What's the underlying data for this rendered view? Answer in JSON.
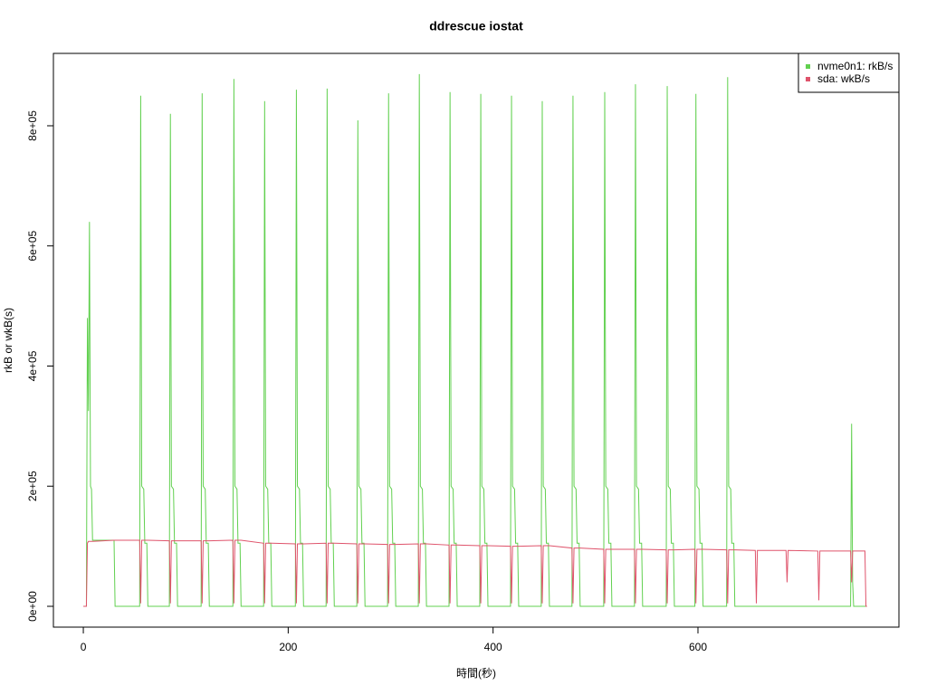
{
  "chart_data": {
    "type": "line",
    "title": "ddrescue iostat",
    "xlabel": "時間(秒)",
    "ylabel": "rkB or wkB(s)",
    "x": [
      0,
      3,
      4,
      5,
      6,
      7,
      8,
      9,
      30,
      31,
      55,
      56,
      57,
      59,
      60,
      62,
      63,
      84,
      85,
      86,
      88,
      89,
      91,
      92,
      115,
      116,
      117,
      119,
      120,
      122,
      123,
      146,
      147,
      148,
      150,
      151,
      153,
      154,
      176,
      177,
      178,
      180,
      181,
      183,
      184,
      207,
      208,
      209,
      211,
      212,
      214,
      215,
      237,
      238,
      239,
      241,
      242,
      244,
      245,
      267,
      268,
      269,
      271,
      272,
      274,
      275,
      297,
      298,
      299,
      301,
      302,
      304,
      305,
      327,
      328,
      329,
      331,
      332,
      334,
      335,
      357,
      358,
      359,
      361,
      362,
      364,
      365,
      387,
      388,
      389,
      391,
      392,
      394,
      395,
      417,
      418,
      419,
      421,
      422,
      424,
      425,
      447,
      448,
      449,
      451,
      452,
      454,
      455,
      477,
      478,
      479,
      481,
      482,
      484,
      485,
      508,
      509,
      510,
      512,
      513,
      515,
      516,
      538,
      539,
      540,
      542,
      543,
      545,
      546,
      569,
      570,
      571,
      573,
      574,
      576,
      577,
      597,
      598,
      599,
      601,
      602,
      604,
      605,
      628,
      629,
      630,
      632,
      633,
      635,
      636,
      656,
      657,
      658,
      686,
      687,
      688,
      717,
      718,
      719,
      749,
      750,
      751,
      752,
      763,
      764,
      765
    ],
    "series": [
      {
        "name": "nvme0n1: rkB/s",
        "color": "#61d04f",
        "values": [
          0,
          0,
          480000,
          325000,
          640000,
          200000,
          195000,
          110000,
          110000,
          0,
          0,
          850000,
          200000,
          195000,
          105000,
          105000,
          0,
          0,
          820000,
          200000,
          195000,
          105000,
          105000,
          0,
          0,
          854000,
          200000,
          195000,
          105000,
          105000,
          0,
          0,
          878000,
          200000,
          195000,
          105000,
          105000,
          0,
          0,
          841000,
          200000,
          195000,
          105000,
          105000,
          0,
          0,
          860000,
          200000,
          195000,
          105000,
          105000,
          0,
          0,
          862000,
          200000,
          195000,
          105000,
          105000,
          0,
          0,
          809000,
          200000,
          195000,
          105000,
          105000,
          0,
          0,
          854000,
          200000,
          195000,
          105000,
          105000,
          0,
          0,
          886000,
          200000,
          195000,
          105000,
          105000,
          0,
          0,
          856000,
          200000,
          195000,
          105000,
          105000,
          0,
          0,
          853000,
          200000,
          195000,
          105000,
          105000,
          0,
          0,
          850000,
          200000,
          195000,
          105000,
          105000,
          0,
          0,
          841000,
          200000,
          195000,
          105000,
          105000,
          0,
          0,
          850000,
          200000,
          195000,
          105000,
          105000,
          0,
          0,
          856000,
          200000,
          195000,
          105000,
          105000,
          0,
          0,
          869000,
          200000,
          195000,
          105000,
          105000,
          0,
          0,
          866000,
          200000,
          195000,
          105000,
          105000,
          0,
          0,
          853000,
          200000,
          195000,
          105000,
          105000,
          0,
          0,
          881000,
          200000,
          195000,
          105000,
          105000,
          0,
          0,
          0,
          0,
          0,
          0,
          0,
          0,
          0,
          0,
          0,
          304000,
          40000,
          0,
          0,
          0,
          0
        ]
      },
      {
        "name": "sda: wkB/s",
        "color": "#df536b",
        "values": [
          0,
          0,
          105000,
          108000,
          108000,
          108000,
          108000,
          108000,
          110000,
          110000,
          110000,
          5000,
          110000,
          110000,
          110000,
          110000,
          110000,
          109000,
          5000,
          109000,
          109000,
          109000,
          109000,
          109000,
          109000,
          5000,
          109000,
          109000,
          109000,
          109000,
          109000,
          110000,
          5000,
          110000,
          110000,
          110000,
          110000,
          110000,
          105000,
          5000,
          105000,
          105000,
          105000,
          105000,
          105000,
          104000,
          5000,
          104000,
          104000,
          104000,
          104000,
          104000,
          105000,
          5000,
          105000,
          105000,
          105000,
          105000,
          105000,
          104000,
          5000,
          104000,
          104000,
          104000,
          104000,
          104000,
          103000,
          5000,
          103000,
          103000,
          103000,
          103000,
          103000,
          104000,
          5000,
          104000,
          104000,
          104000,
          104000,
          104000,
          102000,
          5000,
          102000,
          102000,
          102000,
          102000,
          102000,
          101000,
          5000,
          101000,
          101000,
          101000,
          101000,
          101000,
          100000,
          5000,
          100000,
          100000,
          100000,
          100000,
          100000,
          101000,
          5000,
          101000,
          101000,
          101000,
          101000,
          101000,
          97000,
          5000,
          97000,
          97000,
          97000,
          97000,
          97000,
          95000,
          5000,
          95000,
          95000,
          95000,
          95000,
          95000,
          95000,
          5000,
          95000,
          95000,
          95000,
          95000,
          95000,
          94000,
          5000,
          94000,
          94000,
          94000,
          94000,
          94000,
          95000,
          5000,
          95000,
          95000,
          95000,
          95000,
          95000,
          94000,
          5000,
          94000,
          94000,
          94000,
          94000,
          94000,
          93000,
          5000,
          93000,
          93000,
          40000,
          93000,
          92000,
          10000,
          92000,
          92000,
          40000,
          92000,
          92000,
          92000,
          0,
          0
        ]
      }
    ],
    "xlim": [
      -29.2,
      796.2
    ],
    "xticks": [
      0,
      200,
      400,
      600
    ],
    "ylim": [
      -34650,
      920500
    ],
    "yticks": [
      {
        "value": 0,
        "label": "0e+00"
      },
      {
        "value": 200000,
        "label": "2e+05"
      },
      {
        "value": 400000,
        "label": "4e+05"
      },
      {
        "value": 600000,
        "label": "6e+05"
      },
      {
        "value": 800000,
        "label": "8e+05"
      }
    ],
    "legend": "top-right"
  }
}
